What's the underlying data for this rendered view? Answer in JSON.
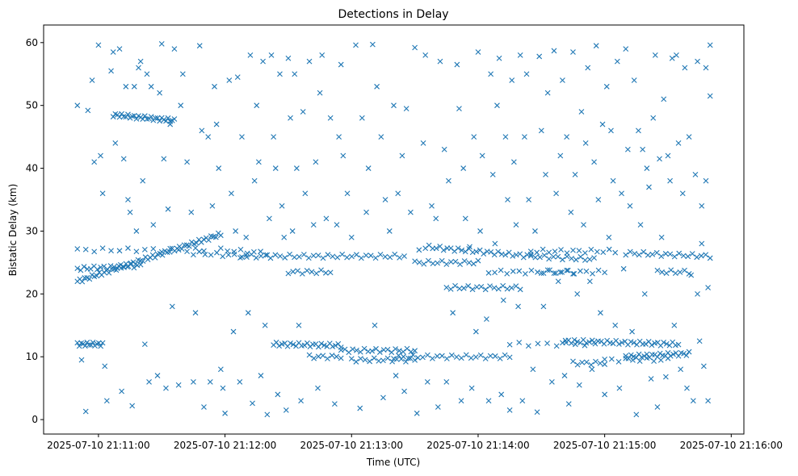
{
  "chart_data": {
    "type": "scatter",
    "title": "Detections in Delay",
    "xlabel": "Time (UTC)",
    "ylabel": "Bistatic Delay (km)",
    "marker": "x",
    "color": "#1f77b4",
    "x_unit": "seconds after 2025-07-10 21:10:00",
    "xlim": [
      34,
      366
    ],
    "ylim": [
      -2.3,
      62.8
    ],
    "xticks": [
      {
        "value": 60,
        "label": "2025-07-10 21:11:00"
      },
      {
        "value": 120,
        "label": "2025-07-10 21:12:00"
      },
      {
        "value": 180,
        "label": "2025-07-10 21:13:00"
      },
      {
        "value": 240,
        "label": "2025-07-10 21:14:00"
      },
      {
        "value": 300,
        "label": "2025-07-10 21:15:00"
      },
      {
        "value": 360,
        "label": "2025-07-10 21:16:00"
      }
    ],
    "yticks": [
      {
        "value": 0,
        "label": "0"
      },
      {
        "value": 10,
        "label": "10"
      },
      {
        "value": 20,
        "label": "20"
      },
      {
        "value": 30,
        "label": "30"
      },
      {
        "value": 40,
        "label": "40"
      },
      {
        "value": 50,
        "label": "50"
      },
      {
        "value": 60,
        "label": "60"
      }
    ],
    "grid": false,
    "tracks": [
      [
        50,
        118,
        22,
        29.5,
        60
      ],
      [
        50,
        62,
        12,
        12,
        14
      ],
      [
        67,
        96,
        48.5,
        47.6,
        30
      ],
      [
        50,
        110,
        27,
        27,
        16
      ],
      [
        50,
        80,
        24,
        24.5,
        20
      ],
      [
        105,
        130,
        26.5,
        26,
        10
      ],
      [
        118,
        140,
        27,
        26.5,
        8
      ],
      [
        128,
        205,
        26,
        26,
        35
      ],
      [
        143,
        175,
        12,
        11.8,
        25
      ],
      [
        160,
        175,
        10,
        10,
        8
      ],
      [
        150,
        170,
        23.5,
        23.5,
        10
      ],
      [
        175,
        210,
        11,
        11,
        20
      ],
      [
        180,
        210,
        9.5,
        9.5,
        15
      ],
      [
        200,
        255,
        10,
        10,
        25
      ],
      [
        210,
        240,
        25,
        25,
        15
      ],
      [
        225,
        260,
        21,
        21,
        18
      ],
      [
        215,
        265,
        27.5,
        26,
        30
      ],
      [
        265,
        295,
        26,
        25.5,
        15
      ],
      [
        245,
        300,
        23.5,
        23.5,
        20
      ],
      [
        255,
        295,
        12,
        12,
        10
      ],
      [
        285,
        300,
        9,
        9,
        8
      ],
      [
        280,
        335,
        12.5,
        12,
        40
      ],
      [
        300,
        330,
        9.5,
        9.5,
        10
      ],
      [
        310,
        340,
        10,
        10.5,
        25
      ],
      [
        310,
        350,
        26.5,
        26,
        20
      ],
      [
        325,
        340,
        23.5,
        23.5,
        8
      ],
      [
        265,
        305,
        26.8,
        26.8,
        15
      ],
      [
        270,
        285,
        23.5,
        23.5,
        6
      ]
    ],
    "points": [
      [
        50,
        50
      ],
      [
        52,
        9.5
      ],
      [
        54,
        1.3
      ],
      [
        55,
        49.2
      ],
      [
        57,
        54
      ],
      [
        58,
        41
      ],
      [
        60,
        59.6
      ],
      [
        61,
        42
      ],
      [
        62,
        36
      ],
      [
        63,
        8.5
      ],
      [
        64,
        3
      ],
      [
        66,
        55.5
      ],
      [
        67,
        58.5
      ],
      [
        68,
        44
      ],
      [
        70,
        59
      ],
      [
        71,
        4.5
      ],
      [
        72,
        41.5
      ],
      [
        73,
        53
      ],
      [
        74,
        35
      ],
      [
        75,
        33
      ],
      [
        76,
        2.2
      ],
      [
        77,
        53
      ],
      [
        78,
        30
      ],
      [
        79,
        56
      ],
      [
        80,
        57
      ],
      [
        81,
        38
      ],
      [
        82,
        12
      ],
      [
        83,
        55
      ],
      [
        84,
        6
      ],
      [
        85,
        53
      ],
      [
        86,
        31
      ],
      [
        88,
        7
      ],
      [
        89,
        52
      ],
      [
        90,
        59.8
      ],
      [
        91,
        41.5
      ],
      [
        92,
        5
      ],
      [
        93,
        33.5
      ],
      [
        94,
        47
      ],
      [
        95,
        18
      ],
      [
        96,
        59
      ],
      [
        98,
        5.5
      ],
      [
        99,
        50
      ],
      [
        100,
        55
      ],
      [
        102,
        41
      ],
      [
        104,
        33
      ],
      [
        105,
        6
      ],
      [
        106,
        17
      ],
      [
        108,
        59.5
      ],
      [
        109,
        46
      ],
      [
        110,
        2
      ],
      [
        112,
        45
      ],
      [
        113,
        6
      ],
      [
        114,
        34
      ],
      [
        115,
        53
      ],
      [
        116,
        47
      ],
      [
        117,
        40
      ],
      [
        118,
        8
      ],
      [
        119,
        5
      ],
      [
        120,
        1
      ],
      [
        122,
        54
      ],
      [
        123,
        36
      ],
      [
        124,
        14
      ],
      [
        125,
        30
      ],
      [
        126,
        54.5
      ],
      [
        127,
        6
      ],
      [
        128,
        45
      ],
      [
        130,
        29
      ],
      [
        131,
        17
      ],
      [
        132,
        58
      ],
      [
        133,
        2.6
      ],
      [
        134,
        38
      ],
      [
        135,
        50
      ],
      [
        136,
        41
      ],
      [
        137,
        7
      ],
      [
        138,
        57
      ],
      [
        139,
        15
      ],
      [
        140,
        0.8
      ],
      [
        141,
        32
      ],
      [
        142,
        58
      ],
      [
        143,
        45
      ],
      [
        144,
        40
      ],
      [
        145,
        4
      ],
      [
        146,
        55
      ],
      [
        147,
        34
      ],
      [
        148,
        29
      ],
      [
        149,
        1.5
      ],
      [
        150,
        57.5
      ],
      [
        151,
        48
      ],
      [
        152,
        30
      ],
      [
        153,
        55
      ],
      [
        154,
        40
      ],
      [
        155,
        15
      ],
      [
        156,
        3
      ],
      [
        157,
        49
      ],
      [
        158,
        36
      ],
      [
        160,
        57
      ],
      [
        162,
        31
      ],
      [
        163,
        41
      ],
      [
        164,
        5
      ],
      [
        165,
        52
      ],
      [
        166,
        58
      ],
      [
        168,
        32
      ],
      [
        170,
        48
      ],
      [
        172,
        2.5
      ],
      [
        173,
        31
      ],
      [
        174,
        45
      ],
      [
        175,
        56.5
      ],
      [
        176,
        42
      ],
      [
        178,
        36
      ],
      [
        180,
        29
      ],
      [
        182,
        59.6
      ],
      [
        184,
        1.8
      ],
      [
        185,
        48
      ],
      [
        187,
        33
      ],
      [
        188,
        40
      ],
      [
        190,
        59.7
      ],
      [
        191,
        15
      ],
      [
        192,
        53
      ],
      [
        194,
        45
      ],
      [
        195,
        3.5
      ],
      [
        196,
        35
      ],
      [
        198,
        30
      ],
      [
        200,
        50
      ],
      [
        201,
        7
      ],
      [
        202,
        36
      ],
      [
        204,
        42
      ],
      [
        205,
        4.5
      ],
      [
        206,
        49.5
      ],
      [
        208,
        33
      ],
      [
        210,
        59.2
      ],
      [
        211,
        1
      ],
      [
        212,
        27
      ],
      [
        214,
        44
      ],
      [
        215,
        58
      ],
      [
        216,
        6
      ],
      [
        218,
        34
      ],
      [
        220,
        32
      ],
      [
        221,
        2
      ],
      [
        222,
        57
      ],
      [
        224,
        43
      ],
      [
        225,
        6
      ],
      [
        226,
        38
      ],
      [
        228,
        17
      ],
      [
        230,
        56.5
      ],
      [
        231,
        49.5
      ],
      [
        232,
        3
      ],
      [
        233,
        40
      ],
      [
        234,
        32
      ],
      [
        236,
        27.5
      ],
      [
        237,
        5
      ],
      [
        238,
        45
      ],
      [
        239,
        14
      ],
      [
        240,
        58.5
      ],
      [
        241,
        30
      ],
      [
        242,
        42
      ],
      [
        244,
        16
      ],
      [
        245,
        3
      ],
      [
        246,
        55
      ],
      [
        247,
        39
      ],
      [
        248,
        28
      ],
      [
        249,
        50
      ],
      [
        250,
        57.5
      ],
      [
        251,
        4
      ],
      [
        252,
        19
      ],
      [
        253,
        45
      ],
      [
        254,
        35
      ],
      [
        255,
        1.5
      ],
      [
        256,
        54
      ],
      [
        257,
        41
      ],
      [
        258,
        31
      ],
      [
        259,
        18
      ],
      [
        260,
        58
      ],
      [
        261,
        3
      ],
      [
        262,
        45
      ],
      [
        263,
        55
      ],
      [
        264,
        35
      ],
      [
        266,
        8
      ],
      [
        267,
        30
      ],
      [
        268,
        1.2
      ],
      [
        269,
        57.8
      ],
      [
        270,
        46
      ],
      [
        271,
        18
      ],
      [
        272,
        39
      ],
      [
        273,
        52
      ],
      [
        275,
        6
      ],
      [
        276,
        58.7
      ],
      [
        277,
        36
      ],
      [
        278,
        22
      ],
      [
        279,
        42
      ],
      [
        280,
        54
      ],
      [
        281,
        7
      ],
      [
        282,
        45
      ],
      [
        283,
        2.5
      ],
      [
        284,
        33
      ],
      [
        285,
        58.5
      ],
      [
        286,
        39
      ],
      [
        287,
        20
      ],
      [
        288,
        5.5
      ],
      [
        289,
        49
      ],
      [
        290,
        31
      ],
      [
        291,
        44
      ],
      [
        292,
        56
      ],
      [
        293,
        22
      ],
      [
        294,
        8
      ],
      [
        295,
        41
      ],
      [
        296,
        59.5
      ],
      [
        297,
        35
      ],
      [
        298,
        17
      ],
      [
        299,
        47
      ],
      [
        300,
        4
      ],
      [
        301,
        53
      ],
      [
        302,
        29
      ],
      [
        303,
        46
      ],
      [
        304,
        38
      ],
      [
        305,
        15
      ],
      [
        306,
        57
      ],
      [
        307,
        5
      ],
      [
        308,
        36
      ],
      [
        309,
        24
      ],
      [
        310,
        59
      ],
      [
        311,
        43
      ],
      [
        312,
        34
      ],
      [
        313,
        14
      ],
      [
        314,
        54
      ],
      [
        315,
        0.8
      ],
      [
        316,
        46
      ],
      [
        317,
        31
      ],
      [
        318,
        43
      ],
      [
        319,
        20
      ],
      [
        320,
        40
      ],
      [
        321,
        37
      ],
      [
        322,
        6.5
      ],
      [
        323,
        48
      ],
      [
        324,
        58
      ],
      [
        325,
        2
      ],
      [
        326,
        41.5
      ],
      [
        327,
        29
      ],
      [
        328,
        51
      ],
      [
        329,
        6.8
      ],
      [
        330,
        42
      ],
      [
        331,
        38
      ],
      [
        332,
        57.5
      ],
      [
        333,
        15
      ],
      [
        334,
        58
      ],
      [
        335,
        44
      ],
      [
        336,
        8
      ],
      [
        337,
        36
      ],
      [
        338,
        56
      ],
      [
        339,
        5
      ],
      [
        340,
        45
      ],
      [
        341,
        23
      ],
      [
        342,
        3
      ],
      [
        343,
        39
      ],
      [
        344,
        57
      ],
      [
        345,
        12.5
      ],
      [
        346,
        28
      ],
      [
        347,
        8.5
      ],
      [
        348,
        56
      ],
      [
        349,
        3
      ],
      [
        350,
        59.6
      ],
      [
        350,
        51.5
      ],
      [
        349,
        21
      ],
      [
        348,
        38
      ],
      [
        346,
        34
      ],
      [
        344,
        20
      ]
    ]
  }
}
